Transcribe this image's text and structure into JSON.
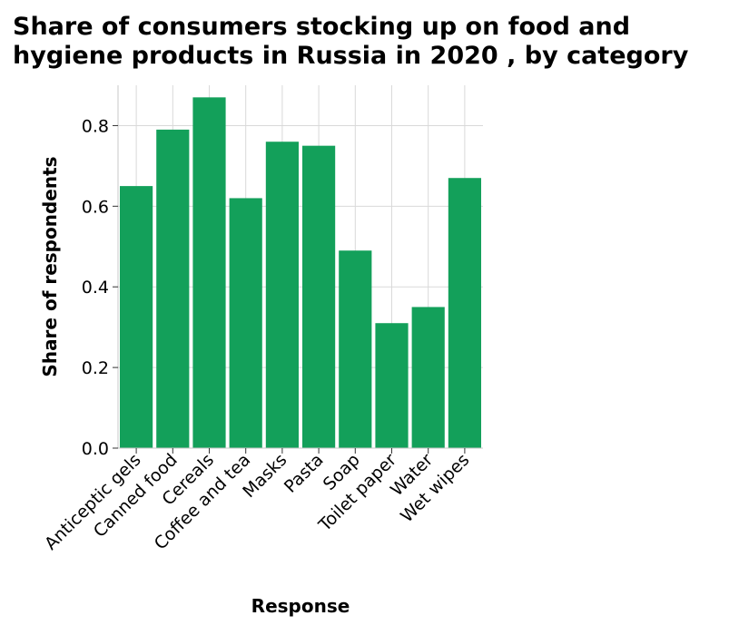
{
  "chart_data": {
    "type": "bar",
    "title": "Share of consumers stocking up on food and hygiene products in Russia in 2020 , by category",
    "xlabel": "Response",
    "ylabel": "Share of respondents",
    "categories": [
      "Anticeptic gels",
      "Canned food",
      "Cereals",
      "Coffee and tea",
      "Masks",
      "Pasta",
      "Soap",
      "Toilet paper",
      "Water",
      "Wet wipes"
    ],
    "values": [
      0.65,
      0.79,
      0.87,
      0.62,
      0.76,
      0.75,
      0.49,
      0.31,
      0.35,
      0.67
    ],
    "yticks": [
      "0.0",
      "0.2",
      "0.4",
      "0.6",
      "0.8"
    ],
    "ylim": [
      0,
      0.9
    ],
    "grid": true,
    "bar_color": "#13a05a",
    "grid_color": "#d9d9d9"
  }
}
